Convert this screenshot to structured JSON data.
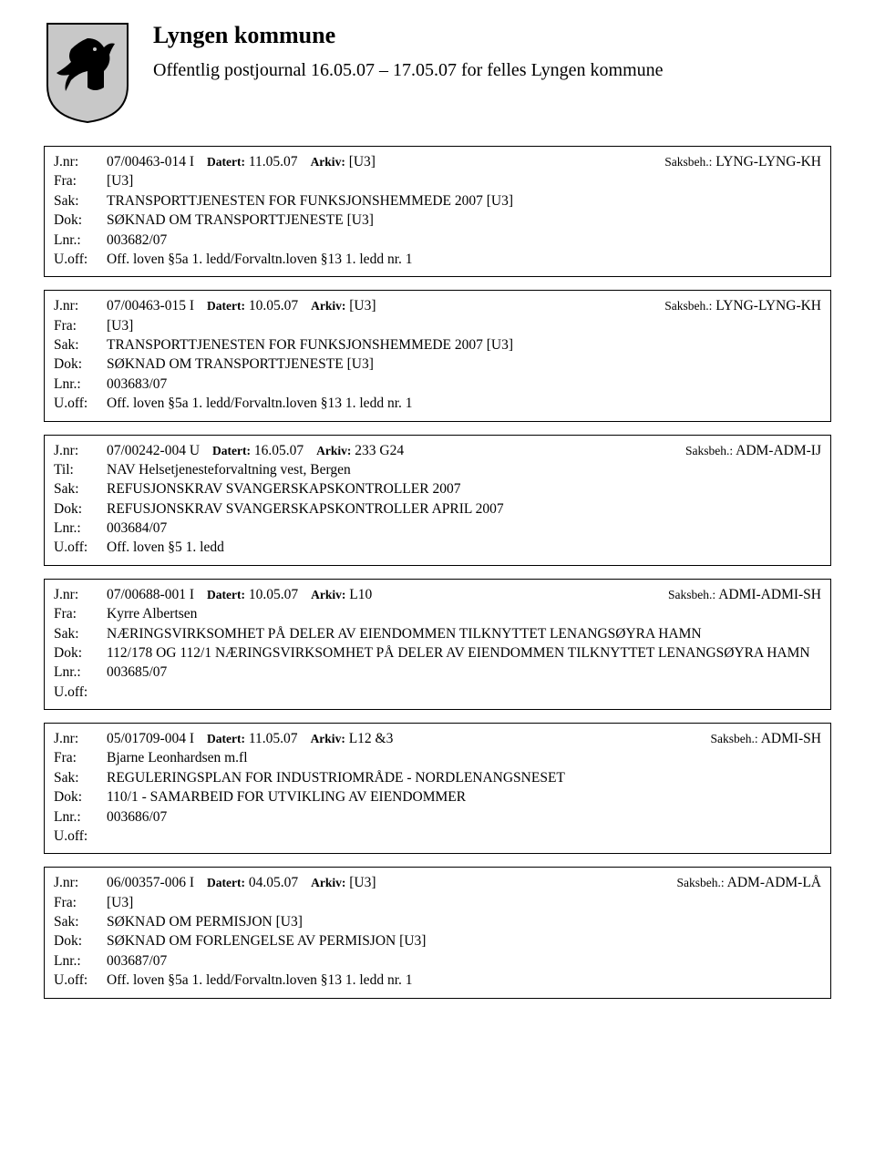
{
  "header": {
    "title": "Lyngen kommune",
    "subtitle": "Offentlig postjournal 16.05.07 – 17.05.07 for felles Lyngen kommune"
  },
  "labels": {
    "jnr": "J.nr:",
    "datert": "Datert:",
    "arkiv": "Arkiv:",
    "saksbeh": "Saksbeh.:",
    "fra": "Fra:",
    "til": "Til:",
    "sak": "Sak:",
    "dok": "Dok:",
    "lnr": "Lnr.:",
    "uoff": "U.off:"
  },
  "records": [
    {
      "jnr": "07/00463-014 I",
      "datert": "11.05.07",
      "arkiv": "[U3]",
      "saksbeh": "LYNG-LYNG-KH",
      "party_label": "Fra:",
      "party": "[U3]",
      "sak": "TRANSPORTTJENESTEN FOR FUNKSJONSHEMMEDE 2007 [U3]",
      "dok": "SØKNAD OM TRANSPORTTJENESTE [U3]",
      "lnr": "003682/07",
      "uoff": "Off. loven §5a 1. ledd/Forvaltn.loven §13 1. ledd nr. 1"
    },
    {
      "jnr": "07/00463-015 I",
      "datert": "10.05.07",
      "arkiv": "[U3]",
      "saksbeh": "LYNG-LYNG-KH",
      "party_label": "Fra:",
      "party": "[U3]",
      "sak": "TRANSPORTTJENESTEN FOR FUNKSJONSHEMMEDE 2007 [U3]",
      "dok": "SØKNAD OM TRANSPORTTJENESTE [U3]",
      "lnr": "003683/07",
      "uoff": "Off. loven §5a 1. ledd/Forvaltn.loven §13 1. ledd nr. 1"
    },
    {
      "jnr": "07/00242-004 U",
      "datert": "16.05.07",
      "arkiv": "233 G24",
      "saksbeh": "ADM-ADM-IJ",
      "party_label": "Til:",
      "party": "NAV Helsetjenesteforvaltning vest, Bergen",
      "sak": "REFUSJONSKRAV SVANGERSKAPSKONTROLLER 2007",
      "dok": "REFUSJONSKRAV SVANGERSKAPSKONTROLLER APRIL 2007",
      "lnr": "003684/07",
      "uoff": "Off. loven §5 1. ledd"
    },
    {
      "jnr": "07/00688-001 I",
      "datert": "10.05.07",
      "arkiv": "L10",
      "saksbeh": "ADMI-ADMI-SH",
      "party_label": "Fra:",
      "party": "Kyrre Albertsen",
      "sak": "NÆRINGSVIRKSOMHET PÅ DELER AV EIENDOMMEN TILKNYTTET LENANGSØYRA HAMN",
      "dok": "112/178 OG 112/1 NÆRINGSVIRKSOMHET PÅ DELER AV EIENDOMMEN TILKNYTTET LENANGSØYRA HAMN",
      "lnr": "003685/07",
      "uoff": ""
    },
    {
      "jnr": "05/01709-004 I",
      "datert": "11.05.07",
      "arkiv": "L12 &3",
      "saksbeh": "ADMI-SH",
      "party_label": "Fra:",
      "party": "Bjarne Leonhardsen m.fl",
      "sak": "REGULERINGSPLAN FOR INDUSTRIOMRÅDE - NORDLENANGSNESET",
      "dok": "110/1 - SAMARBEID FOR UTVIKLING AV EIENDOMMER",
      "lnr": "003686/07",
      "uoff": ""
    },
    {
      "jnr": "06/00357-006 I",
      "datert": "04.05.07",
      "arkiv": "[U3]",
      "saksbeh": "ADM-ADM-LÅ",
      "party_label": "Fra:",
      "party": "[U3]",
      "sak": "SØKNAD OM PERMISJON [U3]",
      "dok": "SØKNAD OM FORLENGELSE AV PERMISJON [U3]",
      "lnr": "003687/07",
      "uoff": "Off. loven §5a 1. ledd/Forvaltn.loven §13 1. ledd nr. 1"
    }
  ]
}
